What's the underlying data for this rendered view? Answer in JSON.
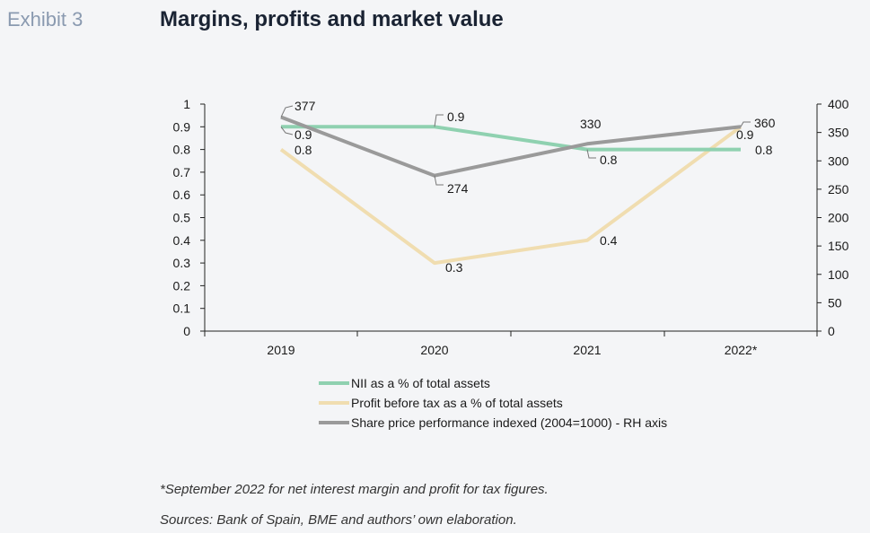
{
  "header": {
    "exhibit": "Exhibit 3",
    "title": "Margins, profits and market value"
  },
  "chart_data": {
    "type": "line",
    "categories": [
      "2019",
      "2020",
      "2021",
      "2022*"
    ],
    "series": [
      {
        "name": "NII as a % of total assets",
        "axis": "left",
        "color": "#8fd1b0",
        "values": [
          0.9,
          0.9,
          0.8,
          0.8
        ]
      },
      {
        "name": "Profit before tax as a % of total assets",
        "axis": "left",
        "color": "#f0ddb0",
        "values": [
          0.8,
          0.3,
          0.4,
          0.9
        ]
      },
      {
        "name": "Share price performance indexed (2004=1000) - RH axis",
        "axis": "right",
        "color": "#9a9a9a",
        "values": [
          377,
          274,
          330,
          360
        ]
      }
    ],
    "y_left": {
      "min": 0,
      "max": 1,
      "step": 0.1,
      "ticks": [
        "0",
        "0.1",
        "0.2",
        "0.3",
        "0.4",
        "0.5",
        "0.6",
        "0.7",
        "0.8",
        "0.9",
        "1"
      ]
    },
    "y_right": {
      "min": 0,
      "max": 400,
      "step": 50,
      "ticks": [
        "0",
        "50",
        "100",
        "150",
        "200",
        "250",
        "300",
        "350",
        "400"
      ]
    },
    "data_labels": {
      "nii": [
        "0.9",
        "0.9",
        "0.8",
        "0.8"
      ],
      "pbt": [
        "0.8",
        "0.3",
        "0.4",
        "0.9"
      ],
      "share": [
        "377",
        "274",
        "330",
        "360"
      ]
    },
    "grid": false,
    "legend_position": "bottom"
  },
  "footnotes": {
    "note": "*September 2022 for net interest margin and profit for tax figures.",
    "sources": "Sources: Bank of Spain, BME and authors’ own elaboration."
  }
}
